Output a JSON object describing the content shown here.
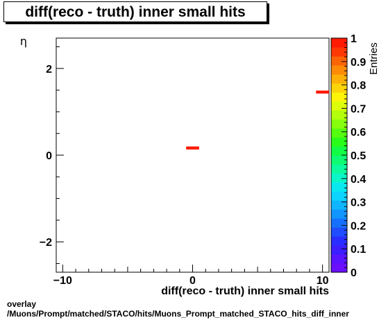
{
  "chart_data": {
    "type": "heatmap",
    "title": "diff(reco - truth) inner small hits",
    "xlabel": "diff(reco - truth) inner small hits",
    "ylabel": "η",
    "zlabel": "Entries",
    "xlim": [
      -10.5,
      10.5
    ],
    "ylim": [
      -2.7,
      2.7
    ],
    "zlim": [
      0,
      1
    ],
    "x_ticks": [
      -10,
      0,
      10
    ],
    "y_ticks": [
      -2,
      0,
      2
    ],
    "z_ticks": [
      0,
      0.1,
      0.2,
      0.3,
      0.4,
      0.5,
      0.6,
      0.7,
      0.8,
      0.9,
      1
    ],
    "x_tick_labels": [
      "−10",
      "0",
      "10"
    ],
    "y_tick_labels": [
      "−2",
      "0",
      "2"
    ],
    "z_tick_labels": [
      "0",
      "0.1",
      "0.2",
      "0.3",
      "0.4",
      "0.5",
      "0.6",
      "0.7",
      "0.8",
      "0.9",
      "1"
    ],
    "bins": [
      {
        "x0": -0.5,
        "x1": 0.5,
        "y0": 0.13,
        "y1": 0.2,
        "value": 1
      },
      {
        "x0": 9.5,
        "x1": 10.5,
        "y0": 1.42,
        "y1": 1.49,
        "value": 1
      }
    ],
    "palette": [
      "#6b0fff",
      "#5a15ff",
      "#3c1eff",
      "#2a2dff",
      "#1f4dff",
      "#1670ff",
      "#1195ff",
      "#0fb5ff",
      "#0cd4ff",
      "#0ae8ef",
      "#0af5c8",
      "#0cf99d",
      "#0efb72",
      "#12fc45",
      "#2afc1a",
      "#55fd10",
      "#86fe0e",
      "#b2fe0c",
      "#dcfe0b",
      "#fdf40a",
      "#fdd409",
      "#fdb008",
      "#fd8b07",
      "#fd6406",
      "#fe3805",
      "#ff1a04"
    ]
  },
  "footer": {
    "line1": "overlay",
    "line2": "/Muons/Prompt/matched/STACO/hits/Muons_Prompt_matched_STACO_hits_diff_inner"
  }
}
